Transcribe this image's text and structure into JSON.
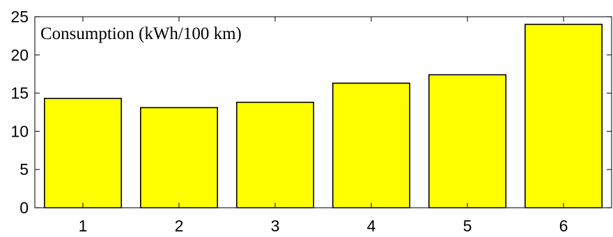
{
  "chart_data": {
    "type": "bar",
    "title": "Consumption (kWh/100 km)",
    "categories": [
      "1",
      "2",
      "3",
      "4",
      "5",
      "6"
    ],
    "values": [
      14.3,
      13.1,
      13.8,
      16.3,
      17.4,
      24.0
    ],
    "ylim": [
      0,
      25
    ],
    "yticks": [
      "0",
      "5",
      "10",
      "15",
      "20",
      "25"
    ],
    "xlabel": "",
    "ylabel": "",
    "grid": false,
    "bar_color": "#ffff00",
    "edge_color": "#000000"
  }
}
